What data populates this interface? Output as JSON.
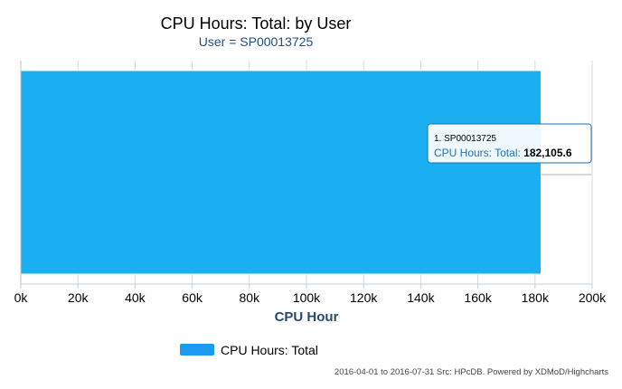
{
  "chart_data": {
    "type": "bar",
    "orientation": "horizontal",
    "title": "CPU Hours: Total: by User",
    "subtitle": "User = SP00013725",
    "categories": [
      ""
    ],
    "series": [
      {
        "name": "CPU Hours: Total",
        "color": "#1aaff0",
        "values": [
          182105.6
        ]
      }
    ],
    "xlabel": "CPU Hour",
    "xlim": [
      0,
      200000
    ],
    "xticks": [
      0,
      20000,
      40000,
      60000,
      80000,
      100000,
      120000,
      140000,
      160000,
      180000,
      200000
    ],
    "xtick_labels": [
      "0k",
      "20k",
      "40k",
      "60k",
      "80k",
      "100k",
      "120k",
      "140k",
      "160k",
      "180k",
      "200k"
    ],
    "grid": true,
    "legend": {
      "position": "bottom",
      "entries": [
        "CPU Hours: Total"
      ]
    },
    "tooltip": {
      "line1": "1. SP00013725",
      "series_label": "CPU Hours: Total:",
      "value_label": "182,105.6"
    },
    "credits": "2016-04-01 to 2016-07-31 Src: HPcDB. Powered by XDMoD/Highcharts"
  }
}
